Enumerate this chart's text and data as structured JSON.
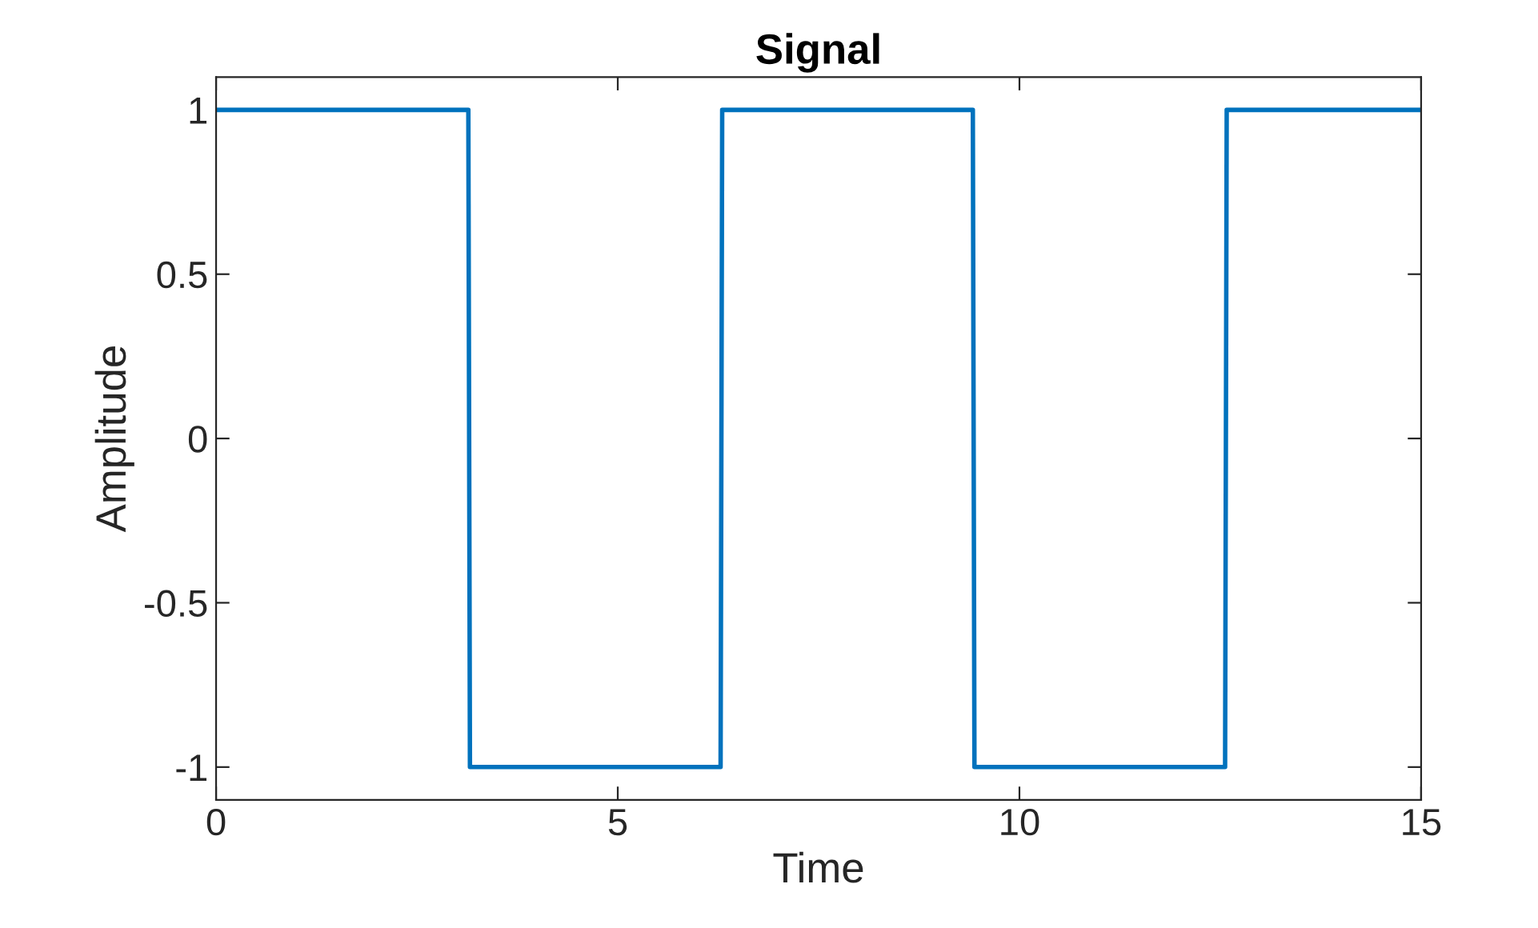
{
  "chart_data": {
    "type": "line",
    "title": "Signal",
    "xlabel": "Time",
    "ylabel": "Amplitude",
    "x": [
      0,
      3.14,
      3.16,
      6.28,
      6.3,
      9.42,
      9.44,
      12.56,
      12.58,
      15
    ],
    "series": [
      {
        "color": "#0072bd",
        "values": [
          1,
          1,
          -1,
          -1,
          1,
          1,
          -1,
          -1,
          1,
          1
        ]
      }
    ],
    "xlim": [
      0,
      15
    ],
    "xticks": [
      0,
      5,
      10,
      15
    ],
    "ylim": [
      -1.1,
      1.1
    ],
    "yticks": [
      -1,
      -0.5,
      0,
      0.5,
      1
    ],
    "grid": false,
    "marker": "none",
    "line_style": "solid"
  }
}
